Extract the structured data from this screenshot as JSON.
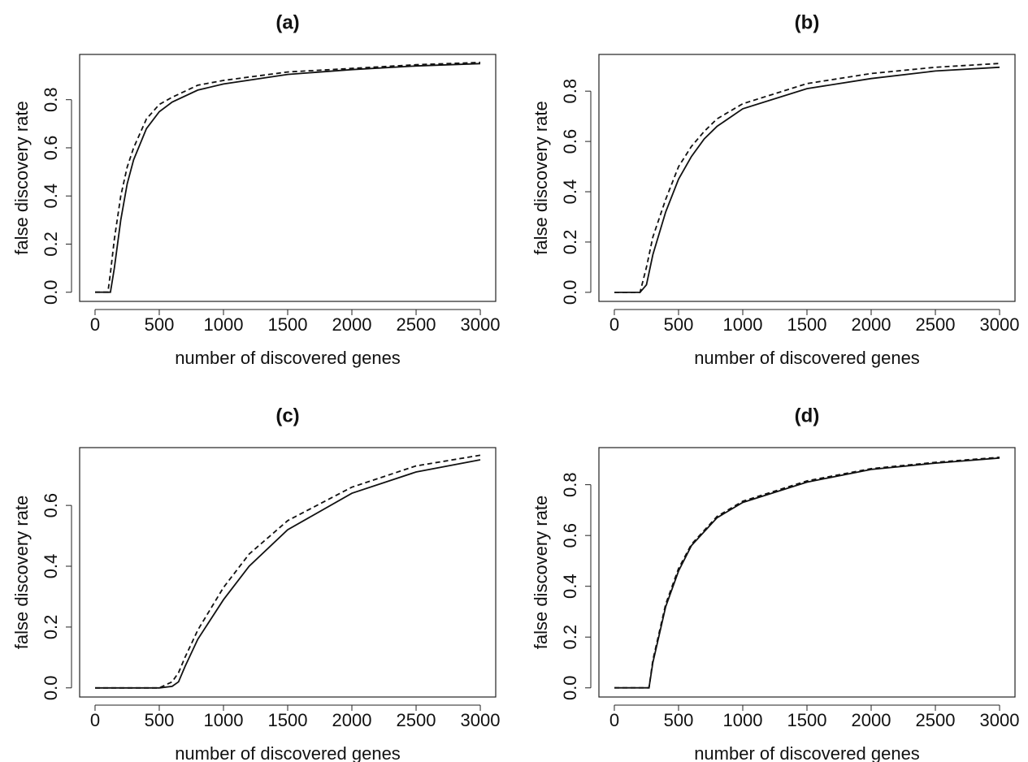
{
  "chart_data": [
    {
      "type": "line",
      "title": "(a)",
      "x_label": "number of discovered genes",
      "y_label": "false discovery rate",
      "x": [
        0,
        100,
        120,
        150,
        200,
        250,
        300,
        400,
        500,
        600,
        800,
        1000,
        1500,
        2000,
        2500,
        3000
      ],
      "series": [
        {
          "color": "#111111",
          "linestyle": "solid",
          "values": [
            0,
            0,
            0,
            0.1,
            0.3,
            0.45,
            0.55,
            0.68,
            0.75,
            0.79,
            0.84,
            0.865,
            0.905,
            0.925,
            0.94,
            0.95
          ]
        },
        {
          "color": "#111111",
          "linestyle": "dashed",
          "values": [
            0,
            0,
            0.08,
            0.22,
            0.4,
            0.52,
            0.6,
            0.72,
            0.78,
            0.81,
            0.86,
            0.88,
            0.915,
            0.93,
            0.945,
            0.955
          ]
        }
      ],
      "xlim": [
        -120,
        3120
      ],
      "ylim": [
        -0.038,
        0.988
      ],
      "xticks": [
        0,
        500,
        1000,
        1500,
        2000,
        2500,
        3000
      ],
      "yticks": [
        {
          "value": 0,
          "label": "0.0"
        },
        0.2,
        0.4,
        0.6,
        0.8
      ]
    },
    {
      "type": "line",
      "title": "(b)",
      "x_label": "number of discovered genes",
      "y_label": "false discovery rate",
      "x": [
        0,
        200,
        250,
        300,
        400,
        500,
        600,
        700,
        800,
        1000,
        1500,
        2000,
        2500,
        3000
      ],
      "series": [
        {
          "color": "#111111",
          "linestyle": "solid",
          "values": [
            0,
            0,
            0.03,
            0.15,
            0.32,
            0.45,
            0.54,
            0.61,
            0.66,
            0.73,
            0.81,
            0.85,
            0.88,
            0.895
          ]
        },
        {
          "color": "#111111",
          "linestyle": "dashed",
          "values": [
            0,
            0,
            0.1,
            0.22,
            0.37,
            0.5,
            0.58,
            0.64,
            0.69,
            0.75,
            0.83,
            0.87,
            0.895,
            0.91
          ]
        }
      ],
      "xlim": [
        -120,
        3120
      ],
      "ylim": [
        -0.036,
        0.946
      ],
      "xticks": [
        0,
        500,
        1000,
        1500,
        2000,
        2500,
        3000
      ],
      "yticks": [
        {
          "value": 0,
          "label": "0.0"
        },
        0.2,
        0.4,
        0.6,
        0.8
      ]
    },
    {
      "type": "line",
      "title": "(c)",
      "x_label": "number of discovered genes",
      "y_label": "false discovery rate",
      "x": [
        0,
        500,
        600,
        650,
        700,
        800,
        1000,
        1200,
        1500,
        2000,
        2500,
        3000
      ],
      "series": [
        {
          "color": "#111111",
          "linestyle": "solid",
          "values": [
            0,
            0,
            0.005,
            0.02,
            0.07,
            0.16,
            0.29,
            0.4,
            0.52,
            0.64,
            0.71,
            0.75
          ]
        },
        {
          "color": "#111111",
          "linestyle": "dashed",
          "values": [
            0,
            0,
            0.02,
            0.05,
            0.1,
            0.19,
            0.33,
            0.44,
            0.55,
            0.66,
            0.73,
            0.765
          ]
        }
      ],
      "xlim": [
        -120,
        3120
      ],
      "ylim": [
        -0.03,
        0.79
      ],
      "xticks": [
        0,
        500,
        1000,
        1500,
        2000,
        2500,
        3000
      ],
      "yticks": [
        {
          "value": 0,
          "label": "0.0"
        },
        0.2,
        0.4,
        0.6
      ]
    },
    {
      "type": "line",
      "title": "(d)",
      "x_label": "number of discovered genes",
      "y_label": "false discovery rate",
      "x": [
        0,
        270,
        300,
        400,
        500,
        600,
        800,
        1000,
        1500,
        2000,
        2500,
        3000
      ],
      "series": [
        {
          "color": "#111111",
          "linestyle": "solid",
          "values": [
            0,
            0,
            0.1,
            0.32,
            0.46,
            0.56,
            0.67,
            0.73,
            0.81,
            0.86,
            0.885,
            0.905
          ]
        },
        {
          "color": "#111111",
          "linestyle": "dashed",
          "values": [
            0,
            0,
            0.11,
            0.33,
            0.47,
            0.565,
            0.675,
            0.735,
            0.815,
            0.863,
            0.888,
            0.908
          ]
        }
      ],
      "xlim": [
        -120,
        3120
      ],
      "ylim": [
        -0.036,
        0.946
      ],
      "xticks": [
        0,
        500,
        1000,
        1500,
        2000,
        2500,
        3000
      ],
      "yticks": [
        {
          "value": 0,
          "label": "0.0"
        },
        0.2,
        0.4,
        0.6,
        0.8
      ]
    }
  ]
}
